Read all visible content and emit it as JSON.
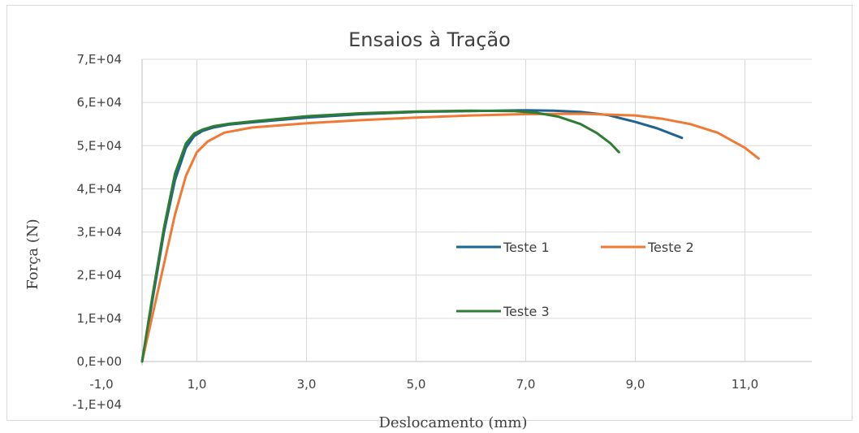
{
  "chart_data": {
    "type": "line",
    "title": "Ensaios à Tração",
    "xlabel": "Deslocamento (mm)",
    "ylabel": "Força (N)",
    "xlim": [
      -1.0,
      12.4
    ],
    "ylim": [
      -10000,
      70000
    ],
    "x_ticks": [
      -1.0,
      1.0,
      3.0,
      5.0,
      7.0,
      9.0,
      11.0
    ],
    "x_tick_labels": [
      "-1,0",
      "1,0",
      "3,0",
      "5,0",
      "7,0",
      "9,0",
      "11,0"
    ],
    "y_ticks": [
      -10000,
      0,
      10000,
      20000,
      30000,
      40000,
      50000,
      60000,
      70000
    ],
    "y_tick_labels": [
      "-1,E+04",
      "0,E+00",
      "1,E+04",
      "2,E+04",
      "3,E+04",
      "4,E+04",
      "5,E+04",
      "6,E+04",
      "7,E+04"
    ],
    "grid": true,
    "legend_position": "center-right",
    "series": [
      {
        "name": "Teste 1",
        "color": "#1f6391",
        "x": [
          0,
          0.2,
          0.4,
          0.6,
          0.8,
          0.95,
          1.1,
          1.3,
          1.6,
          2.0,
          3.0,
          4.0,
          5.0,
          6.0,
          7.0,
          7.5,
          8.0,
          8.5,
          9.0,
          9.4,
          9.85
        ],
        "y": [
          0,
          15000,
          30000,
          42000,
          49500,
          52200,
          53400,
          54200,
          54900,
          55400,
          56500,
          57300,
          57800,
          58000,
          58200,
          58100,
          57800,
          57100,
          55500,
          54000,
          51800
        ]
      },
      {
        "name": "Teste 2",
        "color": "#f07a35",
        "x": [
          0,
          0.3,
          0.6,
          0.8,
          1.0,
          1.2,
          1.5,
          2.0,
          3.0,
          4.0,
          5.0,
          6.0,
          7.0,
          8.0,
          9.0,
          9.5,
          10.0,
          10.5,
          11.0,
          11.25
        ],
        "y": [
          0,
          17000,
          34000,
          43000,
          48500,
          51000,
          53000,
          54200,
          55200,
          55900,
          56500,
          57000,
          57300,
          57400,
          57000,
          56200,
          55000,
          53000,
          49500,
          47000
        ]
      },
      {
        "name": "Teste 3",
        "color": "#2e7d32",
        "x": [
          0,
          0.2,
          0.4,
          0.6,
          0.8,
          0.95,
          1.1,
          1.3,
          1.6,
          2.0,
          3.0,
          4.0,
          5.0,
          6.0,
          6.8,
          7.2,
          7.6,
          8.0,
          8.3,
          8.55,
          8.7
        ],
        "y": [
          0,
          16000,
          31000,
          43500,
          50500,
          52800,
          53700,
          54500,
          55100,
          55600,
          56800,
          57500,
          57900,
          58100,
          58000,
          57600,
          56700,
          55000,
          52900,
          50500,
          48500
        ]
      }
    ]
  }
}
